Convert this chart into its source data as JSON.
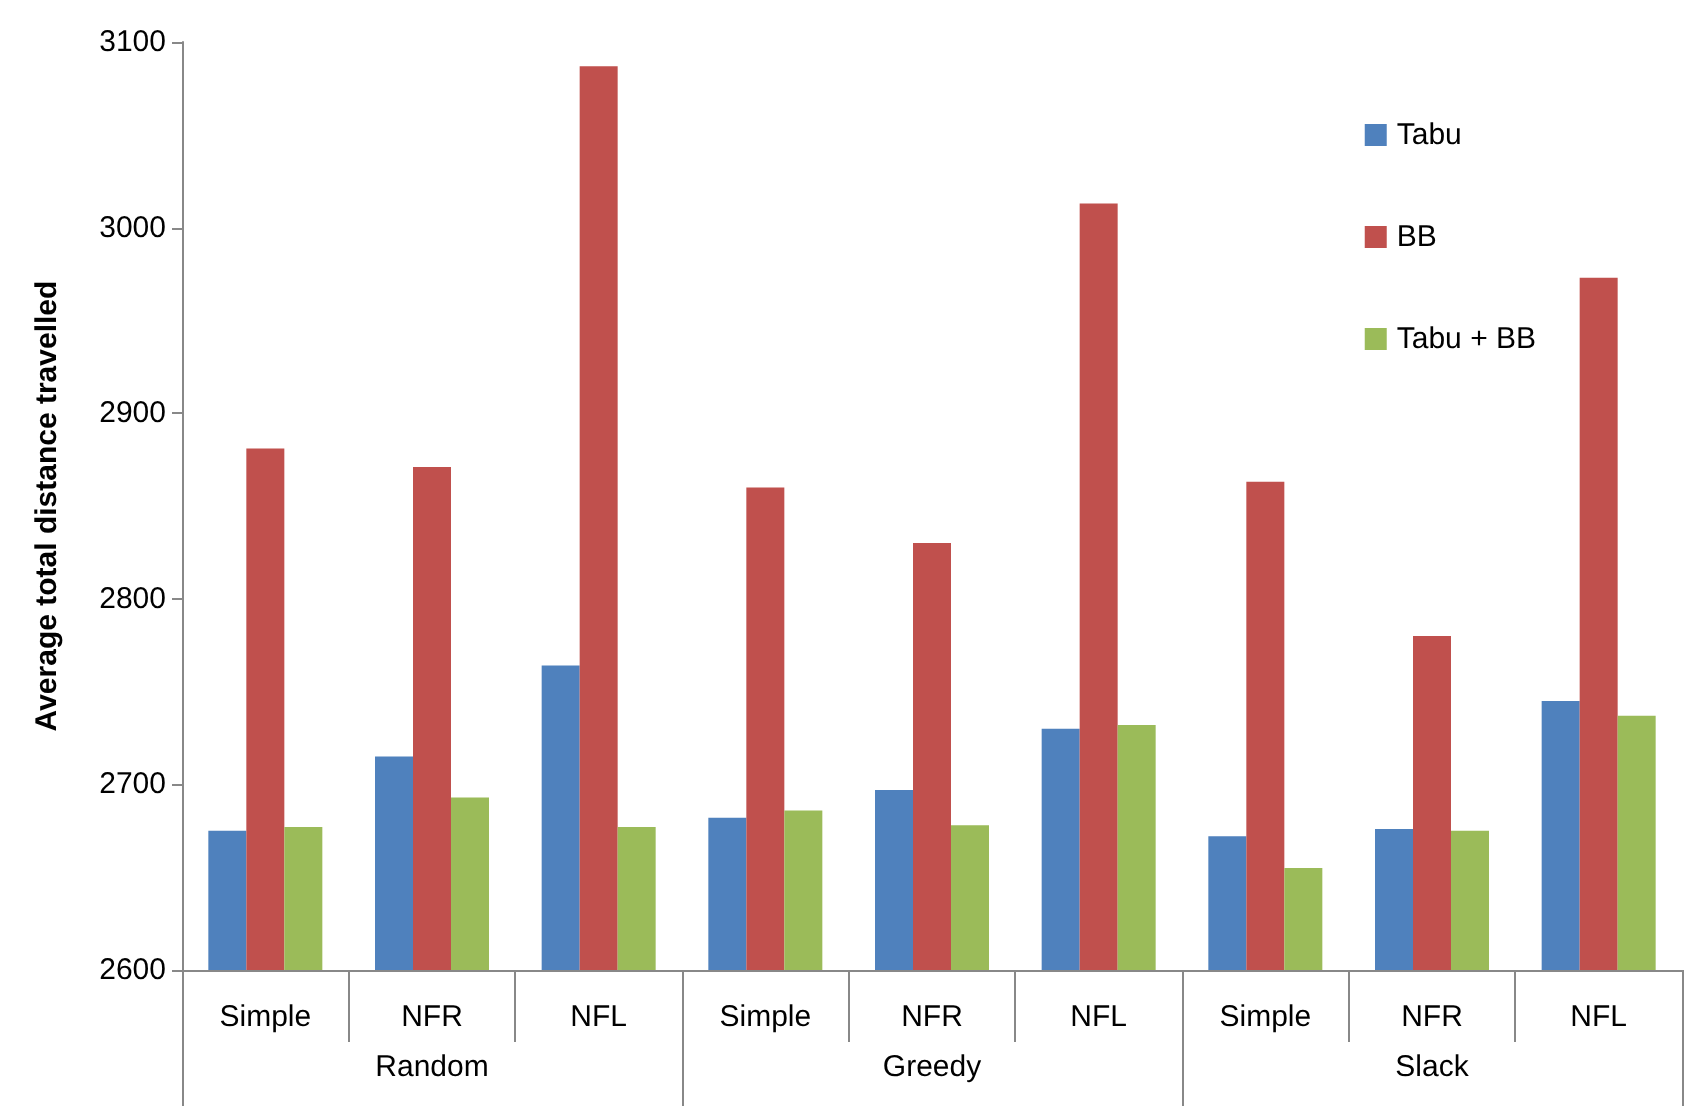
{
  "chart_data": {
    "type": "bar",
    "ylabel": "Average total distance travelled",
    "categories": [
      "Simple",
      "NFR",
      "NFL",
      "Simple",
      "NFR",
      "NFL",
      "Simple",
      "NFR",
      "NFL"
    ],
    "annotations": [
      "Random",
      "Greedy",
      "Slack"
    ],
    "series": [
      {
        "name": "Tabu",
        "color": "#4f81bd",
        "values": [
          2675,
          2715,
          2764,
          2682,
          2697,
          2730,
          2672,
          2676,
          2745
        ]
      },
      {
        "name": "BB",
        "color": "#c0504d",
        "values": [
          2881,
          2871,
          3087,
          2860,
          2830,
          3013,
          2863,
          2780,
          2973
        ]
      },
      {
        "name": "Tabu + BB",
        "color": "#9bbb59",
        "values": [
          2677,
          2693,
          2677,
          2686,
          2678,
          2732,
          2655,
          2675,
          2737
        ]
      }
    ],
    "ylim": [
      2600,
      3100
    ],
    "yticks": [
      2600,
      2700,
      2800,
      2900,
      3000,
      3100
    ],
    "grid": false,
    "legend": "top right"
  }
}
